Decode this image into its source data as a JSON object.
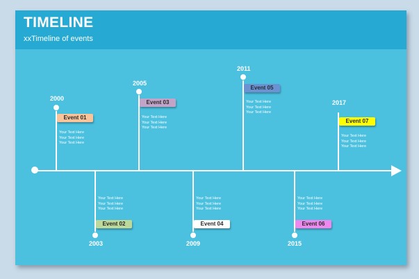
{
  "header": {
    "title": "TIMELINE",
    "subtitle": "xxTimeline of events"
  },
  "events": [
    {
      "year": "2000",
      "label": "Event 01",
      "color": "#f9c49a",
      "position": "above",
      "lines": [
        "Your Text  Here",
        "Your Text  Here",
        "Your Text  Here"
      ]
    },
    {
      "year": "2003",
      "label": "Event 02",
      "color": "#bcd89a",
      "position": "below",
      "lines": [
        "Your Text  Here",
        "Your Text  Here",
        "Your Text  Here"
      ]
    },
    {
      "year": "2005",
      "label": "Event 03",
      "color": "#c3a4c9",
      "position": "above",
      "lines": [
        "Your Text  Here",
        "Your Text  Here",
        "Your Text  Here"
      ]
    },
    {
      "year": "2009",
      "label": "Event 04",
      "color": "#ffffff",
      "position": "below",
      "lines": [
        "Your Text  Here",
        "Your Text  Here",
        "Your Text  Here"
      ]
    },
    {
      "year": "2011",
      "label": "Event 05",
      "color": "#6b93d4",
      "position": "above",
      "lines": [
        "Your Text  Here",
        "Your Text  Here",
        "Your Text  Here"
      ]
    },
    {
      "year": "2015",
      "label": "Event 06",
      "color": "#ee88ee",
      "position": "below",
      "lines": [
        "Your Text  Here",
        "Your Text  Here",
        "Your Text  Here"
      ]
    },
    {
      "year": "2017",
      "label": "Event 07",
      "color": "#ffff00",
      "position": "above",
      "lines": [
        "Your Text  Here",
        "Your Text  Here",
        "Your Text  Here"
      ]
    }
  ]
}
